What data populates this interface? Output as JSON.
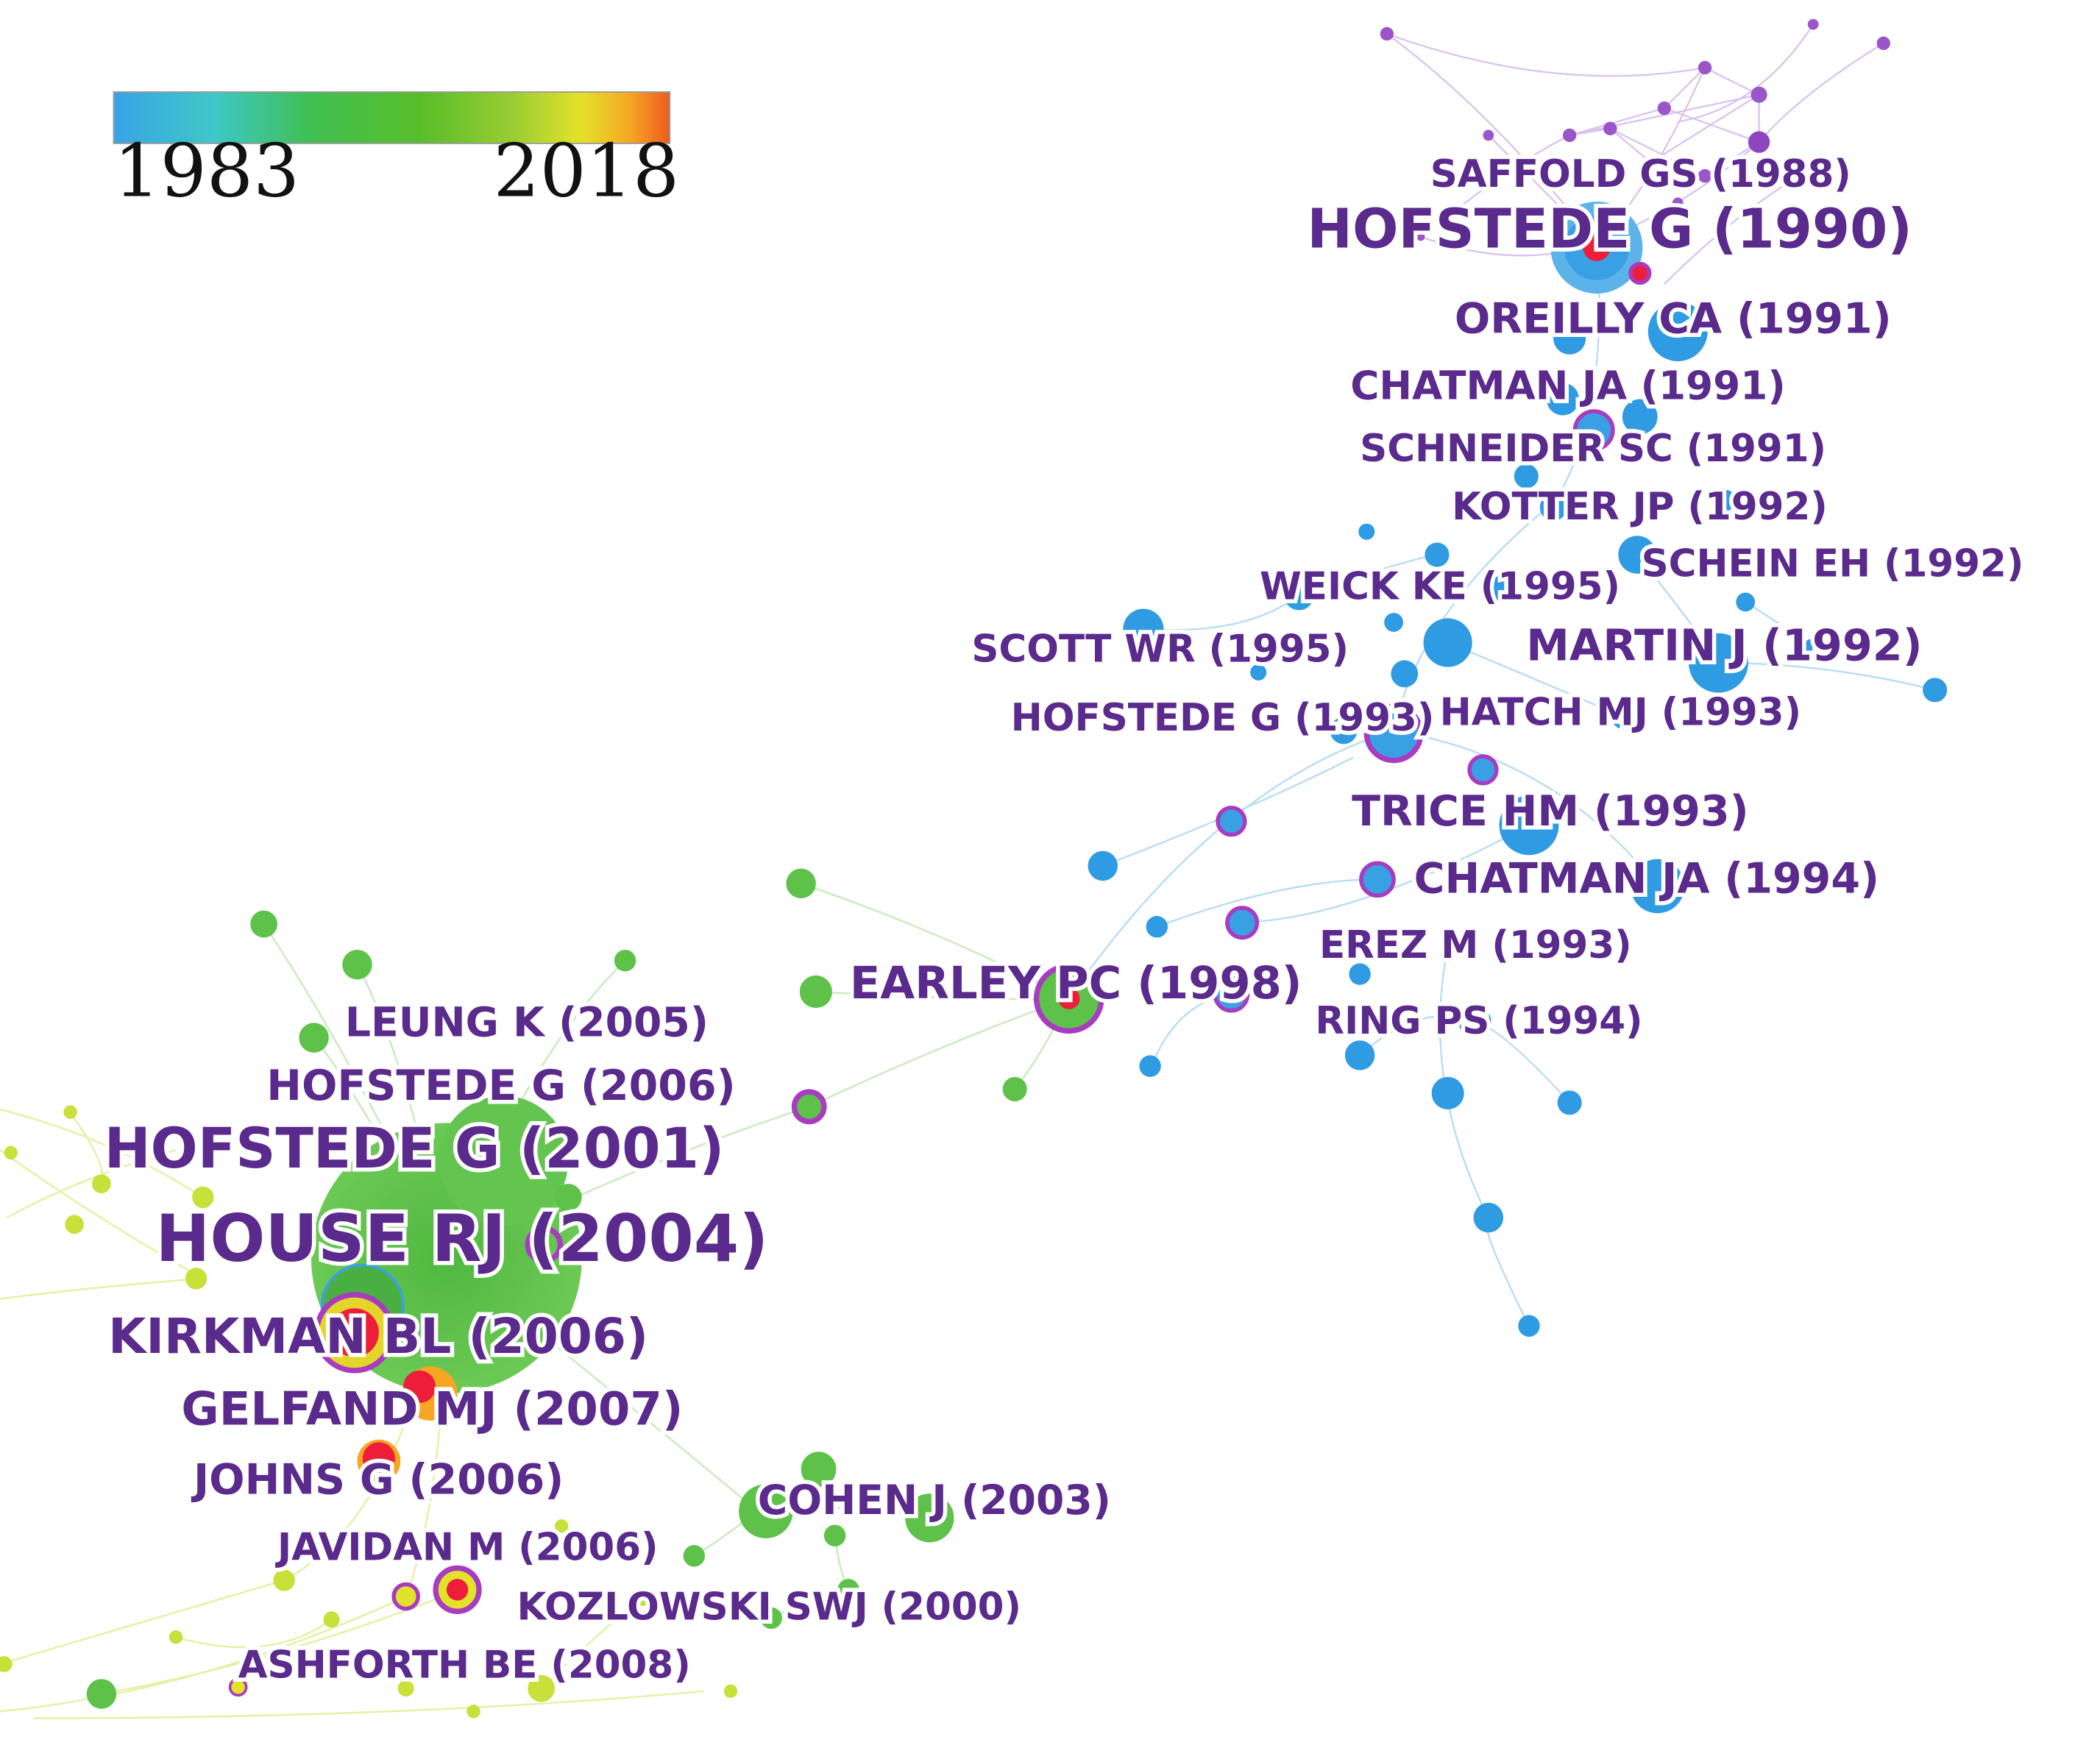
{
  "timeline_legend": {
    "start_year": "1983",
    "end_year": "2018",
    "gradient_colors": [
      "#39a3e6",
      "#3ec8c8",
      "#3fbf55",
      "#58bd2a",
      "#9acd32",
      "#e3e22a",
      "#f5a623",
      "#ee5a1e"
    ]
  },
  "colors": {
    "label": "#5a2a8c",
    "cluster_purple": "#9a55c8",
    "cluster_blue": "#2f9be3",
    "cluster_green": "#5ec24a",
    "cluster_yellowgreen": "#c8e03a",
    "burst_red": "#ee1d3a",
    "ring_purple": "#a83cc0"
  },
  "labels": [
    {
      "id": "saffold",
      "text": "SAFFOLD GS (1988)"
    },
    {
      "id": "hofstede1990",
      "text": "HOFSTEDE G (1990)"
    },
    {
      "id": "oreilly",
      "text": "OREILLY CA (1991)"
    },
    {
      "id": "chatman1991",
      "text": "CHATMAN JA (1991)"
    },
    {
      "id": "schneider",
      "text": "SCHNEIDER SC (1991)"
    },
    {
      "id": "kotter",
      "text": "KOTTER JP (1992)"
    },
    {
      "id": "schein",
      "text": "SCHEIN EH (1992)"
    },
    {
      "id": "weick",
      "text": "WEICK KE (1995)"
    },
    {
      "id": "scott",
      "text": "SCOTT WR (1995)"
    },
    {
      "id": "martin",
      "text": "MARTIN J (1992)"
    },
    {
      "id": "hofstede1993",
      "text": "HOFSTEDE G (1993)"
    },
    {
      "id": "hatch",
      "text": "HATCH MJ (1993)"
    },
    {
      "id": "trice",
      "text": "TRICE HM (1993)"
    },
    {
      "id": "chatman1994",
      "text": "CHATMAN JA (1994)"
    },
    {
      "id": "erez",
      "text": "EREZ M (1993)"
    },
    {
      "id": "earley",
      "text": "EARLEY PC (1998)"
    },
    {
      "id": "ring",
      "text": "RING PS (1994)"
    },
    {
      "id": "leung",
      "text": "LEUNG K (2005)"
    },
    {
      "id": "hofstede2006",
      "text": "HOFSTEDE G (2006)"
    },
    {
      "id": "hofstede2001",
      "text": "HOFSTEDE G (2001)"
    },
    {
      "id": "house",
      "text": "HOUSE RJ (2004)"
    },
    {
      "id": "kirkman",
      "text": "KIRKMAN BL (2006)"
    },
    {
      "id": "gelfand",
      "text": "GELFAND MJ (2007)"
    },
    {
      "id": "johns",
      "text": "JOHNS G (2006)"
    },
    {
      "id": "cohen",
      "text": "COHEN J (2003)"
    },
    {
      "id": "javidan",
      "text": "JAVIDAN M (2006)"
    },
    {
      "id": "kozlowski",
      "text": "KOZLOWSKI SWJ (2000)"
    },
    {
      "id": "ashforth",
      "text": "ASHFORTH BE (2008)"
    }
  ]
}
